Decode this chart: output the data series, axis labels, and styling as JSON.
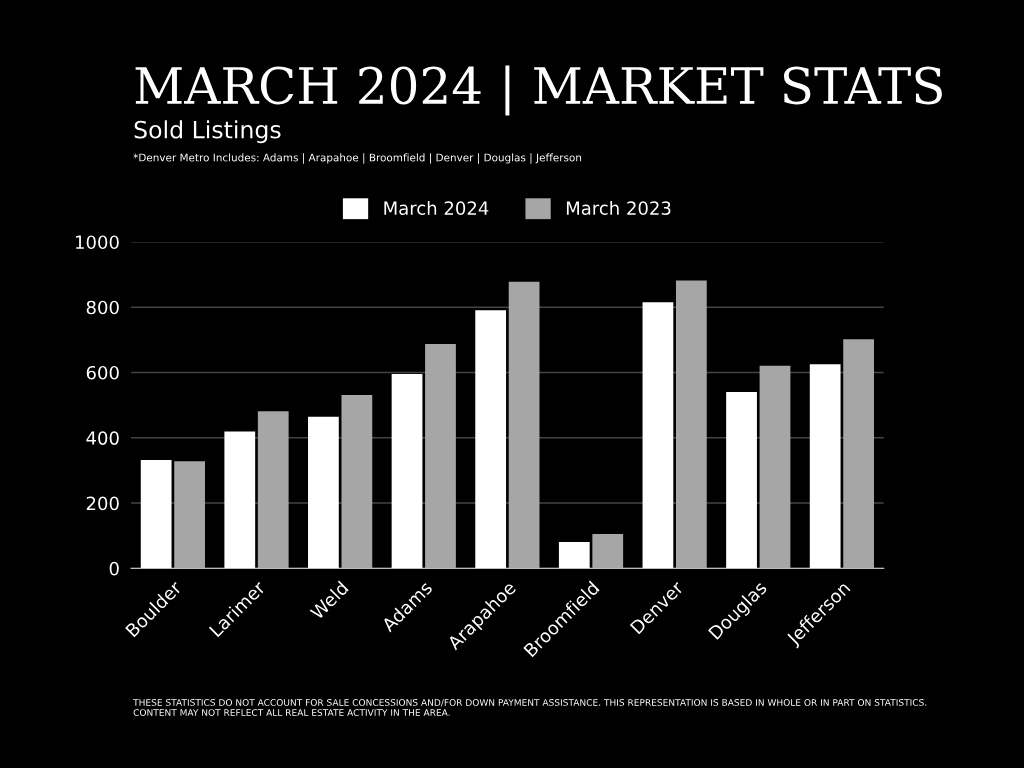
{
  "chart_data": {
    "type": "bar",
    "title": "MARCH 2024 | MARKET STATS",
    "subtitle": "Sold Listings",
    "annotations": [
      "*Denver Metro Includes: Adams | Arapahoe | Broomfield | Denver | Douglas | Jefferson",
      "THESE STATISTICS DO NOT ACCOUNT FOR SALE CONCESSIONS AND/FOR DOWN PAYMENT ASSISTANCE. THIS REPRESENTATION IS BASED IN WHOLE OR IN PART ON STATISTICS. CONTENT MAY NOT REFLECT ALL REAL ESTATE ACTIVITY IN THE AREA."
    ],
    "categories": [
      "Boulder",
      "Larimer",
      "Weld",
      "Adams",
      "Arapahoe",
      "Broomfield",
      "Denver",
      "Douglas",
      "Jefferson"
    ],
    "series": [
      {
        "name": "March 2024",
        "color": "#ffffff",
        "values": [
          332,
          419,
          464,
          595,
          791,
          81,
          815,
          540,
          625
        ]
      },
      {
        "name": "March 2023",
        "color": "#a6a6a6",
        "values": [
          328,
          481,
          531,
          687,
          878,
          105,
          882,
          621,
          702
        ]
      }
    ],
    "ylim": [
      0,
      1000
    ],
    "yticks": [
      0,
      200,
      400,
      600,
      800,
      1000
    ],
    "grid": "y",
    "legend": "top"
  }
}
